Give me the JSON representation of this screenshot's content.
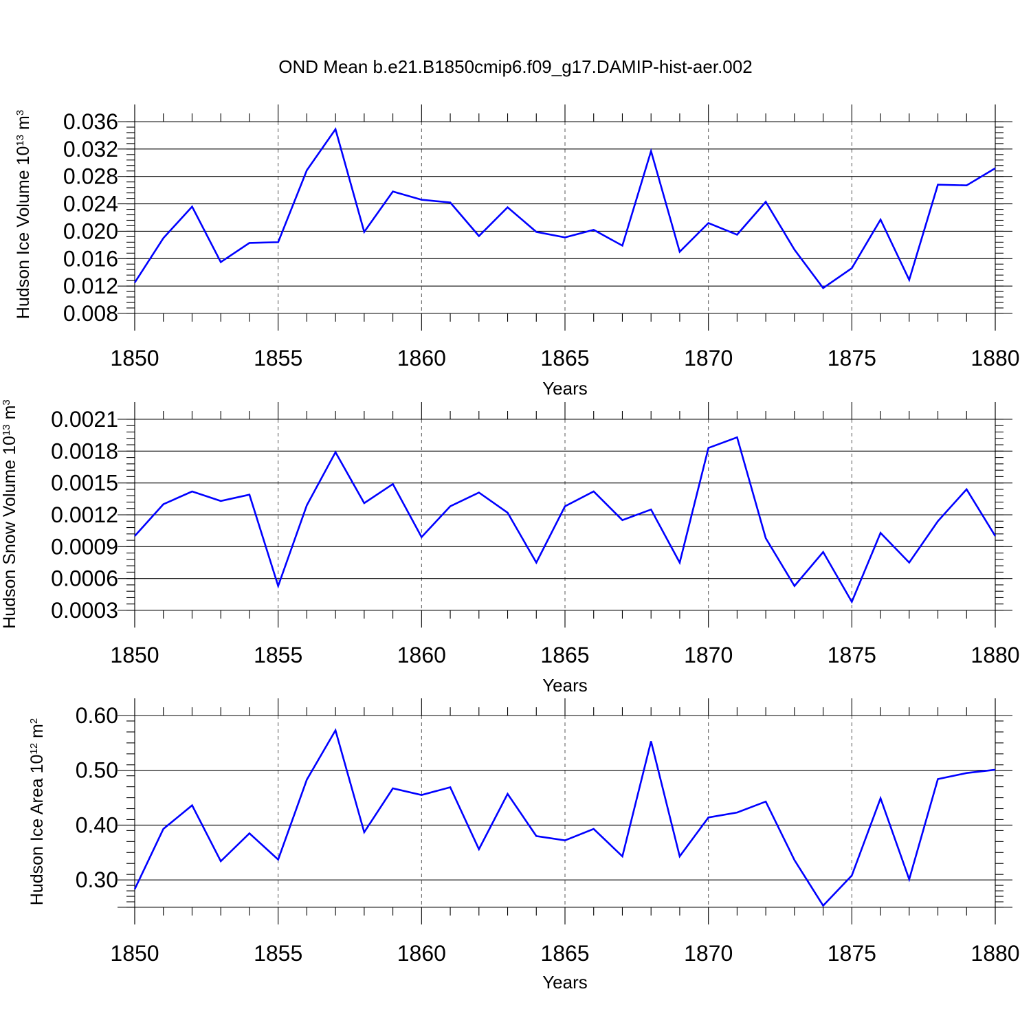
{
  "figure_title": "OND Mean b.e21.B1850cmip6.f09_g17.DAMIP-hist-aer.002",
  "colors": {
    "series": "#0000ff",
    "frame": "#000000",
    "grid": "#555555"
  },
  "chart_data": [
    {
      "type": "line",
      "title": "OND Mean b.e21.B1850cmip6.f09_g17.DAMIP-hist-aer.002",
      "xlabel": "Years",
      "ylabel": {
        "text": "Hudson Ice Volume 10",
        "exp": "13",
        "unit": " m",
        "unit_exp": "3"
      },
      "xlim": [
        1850,
        1880
      ],
      "ylim": [
        0.008,
        0.036
      ],
      "xticks": [
        "1850",
        "1855",
        "1860",
        "1865",
        "1870",
        "1875",
        "1880"
      ],
      "yticks": [
        {
          "v": 0.008,
          "t": "0.008"
        },
        {
          "v": 0.012,
          "t": "0.012"
        },
        {
          "v": 0.016,
          "t": "0.016"
        },
        {
          "v": 0.02,
          "t": "0.020"
        },
        {
          "v": 0.024,
          "t": "0.024"
        },
        {
          "v": 0.028,
          "t": "0.028"
        },
        {
          "v": 0.032,
          "t": "0.032"
        },
        {
          "v": 0.036,
          "t": "0.036"
        }
      ],
      "x": [
        1850,
        1851,
        1852,
        1853,
        1854,
        1855,
        1856,
        1857,
        1858,
        1859,
        1860,
        1861,
        1862,
        1863,
        1864,
        1865,
        1866,
        1867,
        1868,
        1869,
        1870,
        1871,
        1872,
        1873,
        1874,
        1875,
        1876,
        1877,
        1878,
        1879,
        1880
      ],
      "series": [
        {
          "name": "Hudson Ice Volume",
          "values": [
            0.0125,
            0.019,
            0.0236,
            0.0155,
            0.0183,
            0.0184,
            0.0289,
            0.0349,
            0.0199,
            0.0258,
            0.0246,
            0.0242,
            0.0193,
            0.0235,
            0.0199,
            0.0191,
            0.0202,
            0.0179,
            0.0317,
            0.017,
            0.0212,
            0.0195,
            0.0243,
            0.0173,
            0.0117,
            0.0146,
            0.0217,
            0.0129,
            0.0268,
            0.0267,
            0.0292
          ]
        }
      ]
    },
    {
      "type": "line",
      "xlabel": "Years",
      "ylabel": {
        "text": "Hudson Snow Volume 10",
        "exp": "13",
        "unit": " m",
        "unit_exp": "3"
      },
      "xlim": [
        1850,
        1880
      ],
      "ylim": [
        0.0003,
        0.0021
      ],
      "xticks": [
        "1850",
        "1855",
        "1860",
        "1865",
        "1870",
        "1875",
        "1880"
      ],
      "yticks": [
        {
          "v": 0.0003,
          "t": "0.0003"
        },
        {
          "v": 0.0006,
          "t": "0.0006"
        },
        {
          "v": 0.0009,
          "t": "0.0009"
        },
        {
          "v": 0.0012,
          "t": "0.0012"
        },
        {
          "v": 0.0015,
          "t": "0.0015"
        },
        {
          "v": 0.0018,
          "t": "0.0018"
        },
        {
          "v": 0.0021,
          "t": "0.0021"
        }
      ],
      "x": [
        1850,
        1851,
        1852,
        1853,
        1854,
        1855,
        1856,
        1857,
        1858,
        1859,
        1860,
        1861,
        1862,
        1863,
        1864,
        1865,
        1866,
        1867,
        1868,
        1869,
        1870,
        1871,
        1872,
        1873,
        1874,
        1875,
        1876,
        1877,
        1878,
        1879,
        1880
      ],
      "series": [
        {
          "name": "Hudson Snow Volume",
          "values": [
            0.001,
            0.0013,
            0.00142,
            0.00133,
            0.00139,
            0.00053,
            0.00129,
            0.00179,
            0.00131,
            0.00149,
            0.00099,
            0.00128,
            0.00141,
            0.00122,
            0.00075,
            0.00128,
            0.00142,
            0.00115,
            0.00125,
            0.00075,
            0.00183,
            0.00193,
            0.00098,
            0.00053,
            0.00085,
            0.00038,
            0.00103,
            0.00075,
            0.00114,
            0.00144,
            0.001
          ]
        }
      ]
    },
    {
      "type": "line",
      "xlabel": "Years",
      "ylabel": {
        "text": "Hudson Ice Area 10",
        "exp": "12",
        "unit": " m",
        "unit_exp": "2"
      },
      "xlim": [
        1850,
        1880
      ],
      "ylim": [
        0.25,
        0.6
      ],
      "xticks": [
        "1850",
        "1855",
        "1860",
        "1865",
        "1870",
        "1875",
        "1880"
      ],
      "yticks": [
        {
          "v": 0.3,
          "t": "0.30"
        },
        {
          "v": 0.4,
          "t": "0.40"
        },
        {
          "v": 0.5,
          "t": "0.50"
        },
        {
          "v": 0.6,
          "t": "0.60"
        }
      ],
      "x": [
        1850,
        1851,
        1852,
        1853,
        1854,
        1855,
        1856,
        1857,
        1858,
        1859,
        1860,
        1861,
        1862,
        1863,
        1864,
        1865,
        1866,
        1867,
        1868,
        1869,
        1870,
        1871,
        1872,
        1873,
        1874,
        1875,
        1876,
        1877,
        1878,
        1879,
        1880
      ],
      "series": [
        {
          "name": "Hudson Ice Area",
          "values": [
            0.283,
            0.393,
            0.436,
            0.334,
            0.385,
            0.337,
            0.483,
            0.573,
            0.387,
            0.467,
            0.455,
            0.469,
            0.356,
            0.457,
            0.38,
            0.372,
            0.393,
            0.343,
            0.553,
            0.343,
            0.414,
            0.423,
            0.443,
            0.336,
            0.253,
            0.308,
            0.449,
            0.301,
            0.484,
            0.495,
            0.501
          ]
        }
      ]
    }
  ]
}
